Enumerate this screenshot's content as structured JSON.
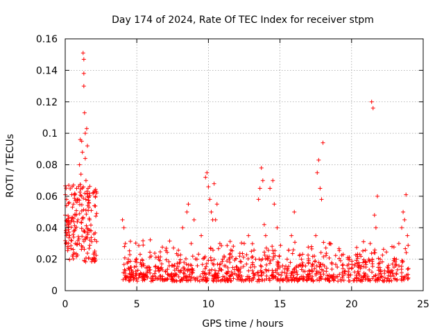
{
  "chart_data": {
    "type": "scatter",
    "title": "Day 174 of 2024, Rate Of TEC Index for receiver stpm",
    "xlabel": "GPS time / hours",
    "ylabel": "ROTI / TECUs",
    "xlim": [
      0,
      25
    ],
    "ylim": [
      0,
      0.16
    ],
    "xticks": [
      "0",
      "5",
      "10",
      "15",
      "20",
      "25"
    ],
    "yticks": [
      "0",
      "0.02",
      "0.04",
      "0.06",
      "0.08",
      "0.1",
      "0.12",
      "0.14",
      "0.16"
    ],
    "grid": true,
    "marker": "plus",
    "color": "#ff0000",
    "series": [
      {
        "name": "ROTI",
        "x": [
          0.0,
          0.05,
          0.1,
          0.15,
          0.2,
          0.25,
          0.3,
          0.4,
          0.5,
          0.6,
          0.7,
          0.8,
          0.9,
          1.0,
          1.05,
          1.1,
          1.15,
          1.2,
          1.25,
          1.3,
          1.3,
          1.3,
          1.35,
          1.4,
          1.4,
          1.45,
          1.5,
          1.55,
          1.6,
          1.65,
          1.7,
          1.8,
          1.9,
          2.0,
          4.0,
          4.1,
          4.2,
          4.4,
          4.6,
          5.0,
          5.5,
          6.0,
          6.5,
          7.0,
          7.5,
          8.0,
          8.2,
          8.5,
          8.6,
          8.8,
          9.0,
          9.2,
          9.5,
          9.8,
          9.9,
          10.0,
          10.1,
          10.2,
          10.3,
          10.4,
          10.5,
          10.6,
          10.8,
          11.0,
          11.5,
          12.0,
          12.5,
          12.8,
          13.0,
          13.3,
          13.5,
          13.6,
          13.7,
          13.8,
          13.9,
          14.0,
          14.3,
          14.5,
          14.6,
          14.8,
          15.0,
          15.5,
          15.8,
          16.0,
          16.5,
          17.0,
          17.2,
          17.4,
          17.5,
          17.6,
          17.7,
          17.8,
          17.9,
          18.0,
          18.5,
          19.0,
          19.5,
          20.0,
          20.5,
          21.0,
          21.2,
          21.3,
          21.4,
          21.5,
          21.6,
          21.7,
          21.8,
          22.0,
          22.5,
          23.0,
          23.3,
          23.5,
          23.6,
          23.7,
          23.8,
          23.9
        ],
        "y": [
          0.048,
          0.03,
          0.058,
          0.036,
          0.027,
          0.042,
          0.035,
          0.032,
          0.022,
          0.046,
          0.03,
          0.065,
          0.058,
          0.08,
          0.096,
          0.074,
          0.095,
          0.088,
          0.151,
          0.147,
          0.138,
          0.13,
          0.113,
          0.1,
          0.084,
          0.07,
          0.103,
          0.092,
          0.065,
          0.056,
          0.045,
          0.038,
          0.02,
          0.036,
          0.045,
          0.04,
          0.03,
          0.02,
          0.015,
          0.018,
          0.016,
          0.022,
          0.014,
          0.012,
          0.016,
          0.018,
          0.04,
          0.05,
          0.055,
          0.03,
          0.045,
          0.02,
          0.035,
          0.072,
          0.075,
          0.066,
          0.058,
          0.05,
          0.045,
          0.068,
          0.045,
          0.055,
          0.03,
          0.02,
          0.018,
          0.015,
          0.03,
          0.035,
          0.025,
          0.02,
          0.058,
          0.065,
          0.078,
          0.07,
          0.042,
          0.035,
          0.065,
          0.07,
          0.055,
          0.04,
          0.015,
          0.02,
          0.035,
          0.05,
          0.02,
          0.018,
          0.028,
          0.022,
          0.035,
          0.075,
          0.083,
          0.065,
          0.058,
          0.094,
          0.03,
          0.015,
          0.012,
          0.014,
          0.012,
          0.015,
          0.02,
          0.03,
          0.12,
          0.116,
          0.048,
          0.04,
          0.06,
          0.02,
          0.015,
          0.02,
          0.03,
          0.04,
          0.05,
          0.045,
          0.061,
          0.035
        ],
        "baseline_density": "dense noise band between 0.005 and 0.03 from 4 to 24 hours"
      }
    ]
  }
}
